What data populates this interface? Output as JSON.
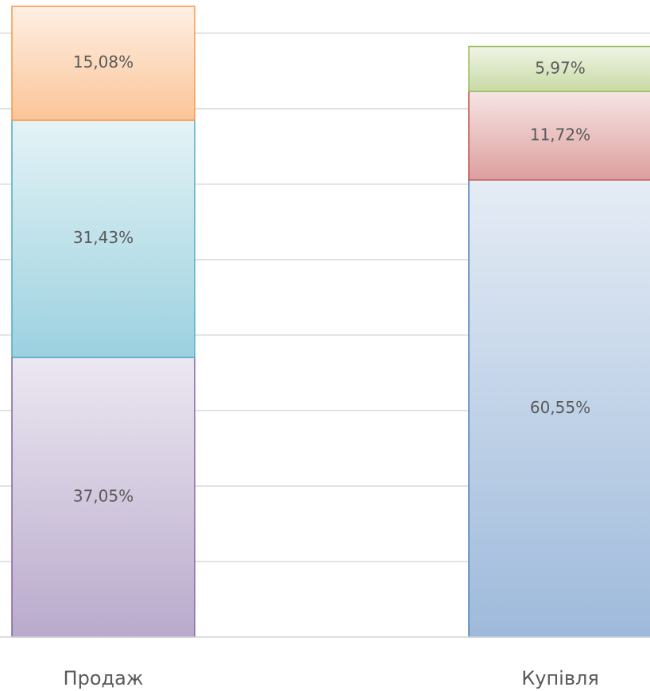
{
  "chart_data": {
    "type": "stacked_bar",
    "categories": [
      "Продаж",
      "Купівля"
    ],
    "series": [
      {
        "color": "#8064a2",
        "values": [
          37.05,
          null
        ],
        "value_labels": [
          "37,05%",
          null
        ]
      },
      {
        "color": "#4bacc6",
        "values": [
          31.43,
          null
        ],
        "value_labels": [
          "31,43%",
          null
        ]
      },
      {
        "color": "#f79646",
        "values": [
          15.08,
          null
        ],
        "value_labels": [
          "15,08%",
          null
        ]
      },
      {
        "color": "#4f81bd",
        "values": [
          null,
          60.55
        ],
        "value_labels": [
          null,
          "60,55%"
        ]
      },
      {
        "color": "#c0504d",
        "values": [
          null,
          11.72
        ],
        "value_labels": [
          null,
          "11,72%"
        ]
      },
      {
        "color": "#9bbb59",
        "values": [
          null,
          5.97
        ],
        "value_labels": [
          null,
          "5,97%"
        ]
      }
    ],
    "ylim": [
      0,
      84.4
    ],
    "yticks": [
      0,
      10,
      20,
      30,
      40,
      50,
      60,
      70,
      80
    ],
    "grid": true
  }
}
